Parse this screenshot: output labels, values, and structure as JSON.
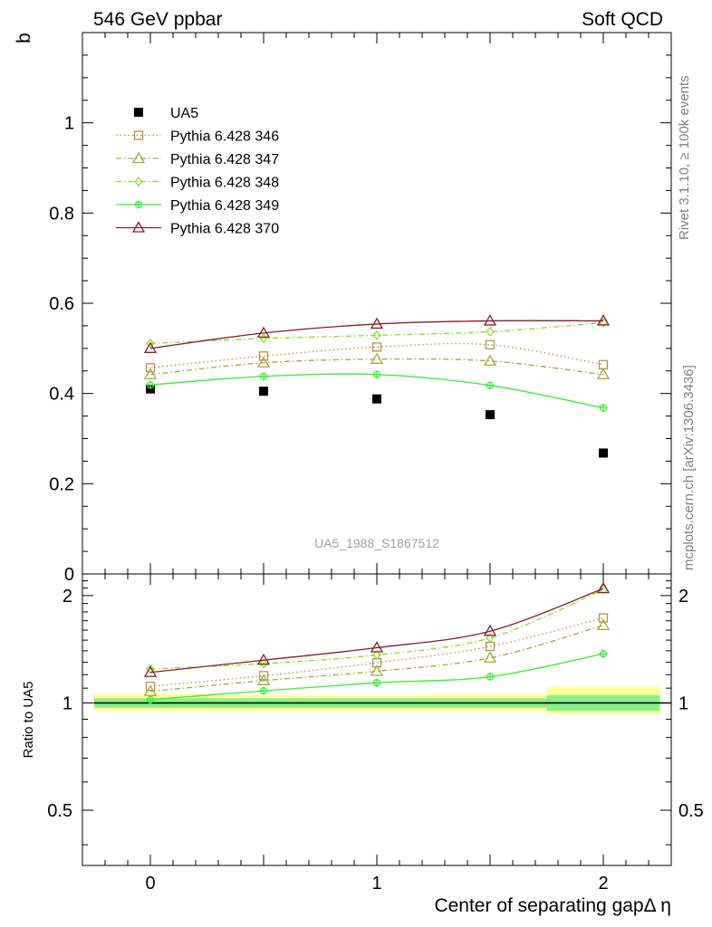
{
  "header": {
    "left_title": "546 GeV ppbar",
    "right_title": "Soft QCD"
  },
  "side_text": {
    "rivet": "Rivet 3.1.10, ≥ 100k events",
    "url": "mcplots.cern.ch [arXiv:1306.3436]"
  },
  "watermark": "UA5_1988_S1867512",
  "chart_data": [
    {
      "type": "line",
      "panel": "main",
      "ylabel": "b",
      "xlabel": "Center of separating gapΔ η",
      "xlim": [
        -0.3,
        2.3
      ],
      "ylim": [
        0,
        1.2
      ],
      "y_ticks": [
        0,
        0.2,
        0.4,
        0.6,
        0.8,
        1
      ],
      "y_tick_labels": [
        "0",
        "0.2",
        "0.4",
        "0.6",
        "0.8",
        "1"
      ],
      "x": [
        0,
        0.5,
        1,
        1.5,
        2
      ],
      "legend_position": "top-left",
      "series": [
        {
          "name": "UA5",
          "color": "#000000",
          "line": "none",
          "marker": "square-filled",
          "values": [
            0.41,
            0.405,
            0.388,
            0.353,
            0.268
          ]
        },
        {
          "name": "Pythia 6.428 346",
          "color": "#b8924a",
          "line": "dotted",
          "marker": "square-open",
          "values": [
            0.457,
            0.483,
            0.503,
            0.508,
            0.464
          ]
        },
        {
          "name": "Pythia 6.428 347",
          "color": "#a6a63a",
          "line": "dashdot",
          "marker": "triangle-open",
          "values": [
            0.442,
            0.468,
            0.476,
            0.472,
            0.442
          ]
        },
        {
          "name": "Pythia 6.428 348",
          "color": "#88dd22",
          "line": "dashdot",
          "marker": "diamond-open",
          "values": [
            0.511,
            0.522,
            0.529,
            0.537,
            0.557
          ]
        },
        {
          "name": "Pythia 6.428 349",
          "color": "#33ee33",
          "line": "solid",
          "marker": "plus-circle",
          "values": [
            0.419,
            0.438,
            0.442,
            0.418,
            0.368
          ]
        },
        {
          "name": "Pythia 6.428 370",
          "color": "#8b1a2b",
          "line": "solid",
          "marker": "triangle-open",
          "values": [
            0.5,
            0.534,
            0.554,
            0.561,
            0.561
          ]
        }
      ]
    },
    {
      "type": "line",
      "panel": "ratio",
      "ylabel": "Ratio to UA5",
      "xlabel": "Center of separating gapΔ η",
      "xlim": [
        -0.3,
        2.3
      ],
      "ylim": [
        0.35,
        2.3
      ],
      "y_ticks": [
        0.5,
        1,
        2
      ],
      "y_tick_labels": [
        "0.5",
        "1",
        "2"
      ],
      "x_ticks": [
        0,
        1,
        2
      ],
      "x_tick_labels": [
        "0",
        "1",
        "2"
      ],
      "x": [
        0,
        0.5,
        1,
        1.5,
        2
      ],
      "reference_band": {
        "x_edges": [
          -0.25,
          0.25,
          0.75,
          1.25,
          1.75,
          2.25
        ],
        "inner": [
          [
            0.97,
            1.03
          ],
          [
            0.97,
            1.03
          ],
          [
            0.97,
            1.03
          ],
          [
            0.97,
            1.03
          ],
          [
            0.95,
            1.05
          ]
        ],
        "outer": [
          [
            0.95,
            1.06
          ],
          [
            0.95,
            1.05
          ],
          [
            0.95,
            1.05
          ],
          [
            0.95,
            1.06
          ],
          [
            0.93,
            1.11
          ]
        ],
        "inner_color": "#88ee88",
        "outer_color": "#ffff99"
      },
      "series": [
        {
          "name": "Pythia 6.428 346",
          "color": "#b8924a",
          "line": "dotted",
          "marker": "square-open",
          "values": [
            1.113,
            1.192,
            1.296,
            1.44,
            1.731
          ]
        },
        {
          "name": "Pythia 6.428 347",
          "color": "#a6a63a",
          "line": "dashdot",
          "marker": "triangle-open",
          "values": [
            1.077,
            1.155,
            1.227,
            1.337,
            1.65
          ]
        },
        {
          "name": "Pythia 6.428 348",
          "color": "#88dd22",
          "line": "dashdot",
          "marker": "diamond-open",
          "values": [
            1.245,
            1.289,
            1.363,
            1.521,
            2.079
          ]
        },
        {
          "name": "Pythia 6.428 349",
          "color": "#33ee33",
          "line": "solid",
          "marker": "plus-circle",
          "values": [
            1.021,
            1.081,
            1.139,
            1.184,
            1.373
          ]
        },
        {
          "name": "Pythia 6.428 370",
          "color": "#8b1a2b",
          "line": "solid",
          "marker": "triangle-open",
          "values": [
            1.218,
            1.318,
            1.428,
            1.589,
            2.093
          ]
        }
      ]
    }
  ]
}
